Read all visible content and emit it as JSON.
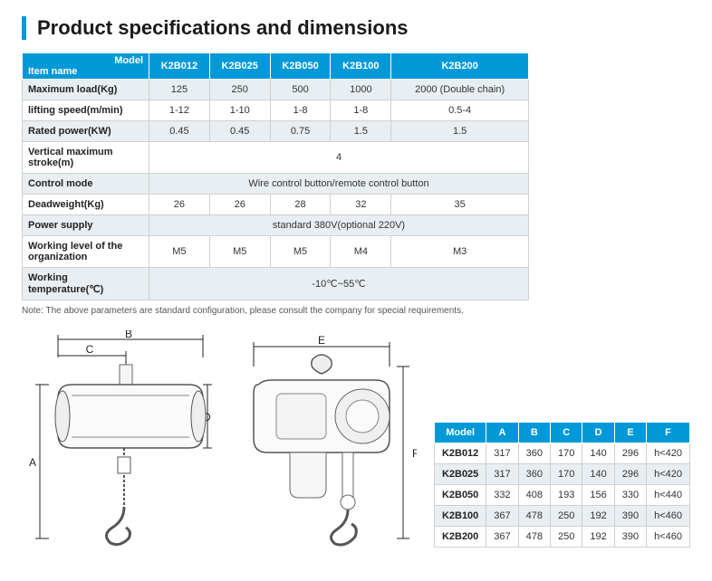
{
  "title": "Product specifications and dimensions",
  "specTable": {
    "cornerTop": "Model",
    "cornerBottom": "Item name",
    "models": [
      "K2B012",
      "K2B025",
      "K2B050",
      "K2B100",
      "K2B200"
    ],
    "rows": [
      {
        "label": "Maximum load(Kg)",
        "cells": [
          "125",
          "250",
          "500",
          "1000",
          "2000 (Double chain)"
        ],
        "alt": true
      },
      {
        "label": "lifting speed(m/min)",
        "cells": [
          "1-12",
          "1-10",
          "1-8",
          "1-8",
          "0.5-4"
        ],
        "alt": false
      },
      {
        "label": "Rated power(KW)",
        "cells": [
          "0.45",
          "0.45",
          "0.75",
          "1.5",
          "1.5"
        ],
        "alt": true
      },
      {
        "label": "Vertical maximum stroke(m)",
        "span": "4",
        "alt": false
      },
      {
        "label": "Control mode",
        "span": "Wire control button/remote control button",
        "alt": true
      },
      {
        "label": "Deadweight(Kg)",
        "cells": [
          "26",
          "26",
          "28",
          "32",
          "35"
        ],
        "alt": false
      },
      {
        "label": "Power supply",
        "span": "standard 380V(optional 220V)",
        "alt": true
      },
      {
        "label": "Working level of the organization",
        "cells": [
          "M5",
          "M5",
          "M5",
          "M4",
          "M3"
        ],
        "alt": false
      },
      {
        "label": "Working temperature(℃)",
        "span": "-10℃~55℃",
        "alt": true
      }
    ]
  },
  "note": "Note: The above parameters are standard configuration, please consult the company for special requirements.",
  "diagram": {
    "labels": {
      "A": "A",
      "B": "B",
      "C": "C",
      "D": "D",
      "E": "E",
      "F": "F"
    }
  },
  "dimTable": {
    "headers": [
      "Model",
      "A",
      "B",
      "C",
      "D",
      "E",
      "F"
    ],
    "rows": [
      {
        "cells": [
          "K2B012",
          "317",
          "360",
          "170",
          "140",
          "296",
          "h<420"
        ],
        "alt": false
      },
      {
        "cells": [
          "K2B025",
          "317",
          "360",
          "170",
          "140",
          "296",
          "h<420"
        ],
        "alt": true
      },
      {
        "cells": [
          "K2B050",
          "332",
          "408",
          "193",
          "156",
          "330",
          "h<440"
        ],
        "alt": false
      },
      {
        "cells": [
          "K2B100",
          "367",
          "478",
          "250",
          "192",
          "390",
          "h<460"
        ],
        "alt": true
      },
      {
        "cells": [
          "K2B200",
          "367",
          "478",
          "250",
          "192",
          "390",
          "h<460"
        ],
        "alt": false
      }
    ]
  },
  "colors": {
    "accent": "#0099d8",
    "altRow": "#e8eef2",
    "border": "#d0d0d0",
    "text": "#333"
  }
}
